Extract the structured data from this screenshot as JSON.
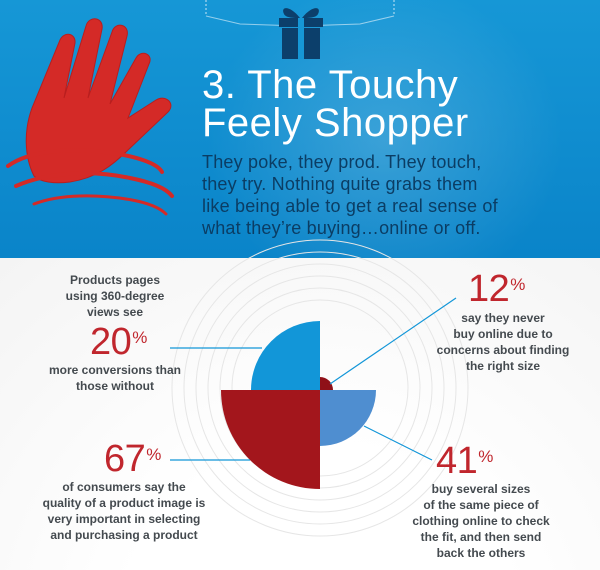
{
  "header": {
    "title_line1": "3. The Touchy",
    "title_line2": "Feely Shopper",
    "intro_line1": "They poke, they prod. They touch,",
    "intro_line2": "they try. Nothing quite grabs them",
    "intro_line3": "like being able to get a real sense of",
    "intro_line4": "what they’re buying…online or off."
  },
  "stats": {
    "views": {
      "pre_line1": "Products pages",
      "pre_line2": "using 360-degree",
      "pre_line3": "views see",
      "value": "20",
      "unit": "%",
      "post_line1": "more conversions than",
      "post_line2": "those without"
    },
    "size": {
      "value": "12",
      "unit": "%",
      "line1": "say they never",
      "line2": "buy online due to",
      "line3": "concerns about finding",
      "line4": "the right size"
    },
    "quality": {
      "value": "67",
      "unit": "%",
      "line1": "of consumers say the",
      "line2": "quality of a product image is",
      "line3": "very important in selecting",
      "line4": "and purchasing a product"
    },
    "sizes": {
      "value": "41",
      "unit": "%",
      "line1": "buy several sizes",
      "line2": "of the same piece of",
      "line3": "clothing online to check",
      "line4": "the fit, and then send",
      "line5": "back the others"
    }
  },
  "colors": {
    "band_blue": "#0a84c9",
    "dark_red": "#a3161c",
    "accent_red": "#c0262d",
    "light_blue": "#1296d8",
    "mid_blue": "#4f8ed0",
    "navy": "#0b3d64"
  },
  "icons": {
    "hand": "hand-icon",
    "gift": "gift-icon"
  }
}
